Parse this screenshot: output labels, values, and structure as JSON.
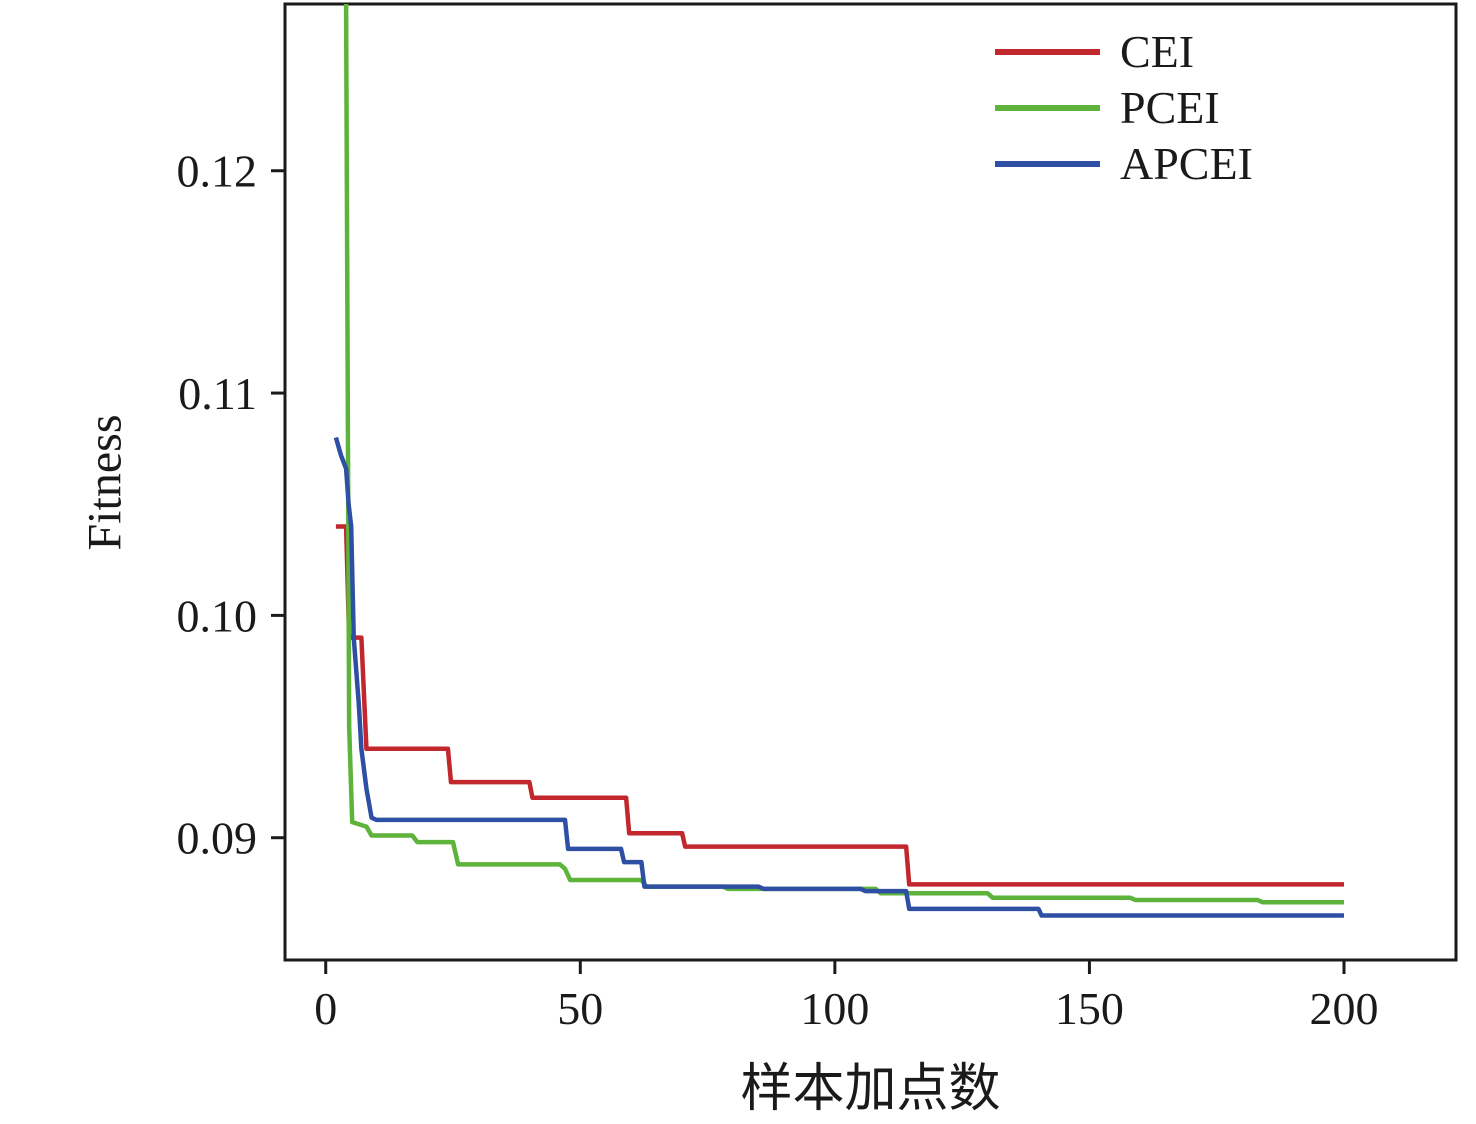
{
  "chart_data": {
    "type": "line",
    "title": "",
    "xlabel": "样本加点数",
    "ylabel": "Fitness",
    "xlim": [
      -8,
      222
    ],
    "ylim": [
      0.0845,
      0.1275
    ],
    "xtick_values": [
      0,
      50,
      100,
      150,
      200
    ],
    "xtick_labels": [
      "0",
      "50",
      "100",
      "150",
      "200"
    ],
    "ytick_values": [
      0.09,
      0.1,
      0.11,
      0.12
    ],
    "ytick_labels": [
      "0.09",
      "0.10",
      "0.11",
      "0.12"
    ],
    "grid": false,
    "legend_position": "top-right",
    "axis_color": "#1a1a1a",
    "series": [
      {
        "name": "CEI",
        "color": "#c1272d",
        "points": [
          [
            2,
            0.104
          ],
          [
            4,
            0.104
          ],
          [
            4.6,
            0.099
          ],
          [
            7,
            0.099
          ],
          [
            7.5,
            0.0965
          ],
          [
            8,
            0.094
          ],
          [
            24,
            0.094
          ],
          [
            24.6,
            0.0925
          ],
          [
            40,
            0.0925
          ],
          [
            40.6,
            0.0918
          ],
          [
            59,
            0.0918
          ],
          [
            59.6,
            0.0902
          ],
          [
            70,
            0.0902
          ],
          [
            70.6,
            0.0896
          ],
          [
            114,
            0.0896
          ],
          [
            114.6,
            0.0879
          ],
          [
            200,
            0.0879
          ]
        ]
      },
      {
        "name": "PCEI",
        "color": "#5eb33a",
        "points": [
          [
            4,
            0.1275
          ],
          [
            4.6,
            0.095
          ],
          [
            5.2,
            0.0907
          ],
          [
            8,
            0.0905
          ],
          [
            9,
            0.0901
          ],
          [
            17,
            0.0901
          ],
          [
            18,
            0.0898
          ],
          [
            25,
            0.0898
          ],
          [
            26,
            0.0888
          ],
          [
            46,
            0.0888
          ],
          [
            47,
            0.0886
          ],
          [
            48,
            0.0881
          ],
          [
            62,
            0.0881
          ],
          [
            63,
            0.0878
          ],
          [
            78,
            0.0878
          ],
          [
            79,
            0.0877
          ],
          [
            108,
            0.0877
          ],
          [
            109,
            0.0875
          ],
          [
            130,
            0.0875
          ],
          [
            131,
            0.0873
          ],
          [
            158,
            0.0873
          ],
          [
            159,
            0.0872
          ],
          [
            183,
            0.0872
          ],
          [
            184,
            0.0871
          ],
          [
            200,
            0.0871
          ]
        ]
      },
      {
        "name": "APCEI",
        "color": "#2e4fa3",
        "points": [
          [
            2,
            0.108
          ],
          [
            3,
            0.1072
          ],
          [
            4,
            0.1066
          ],
          [
            4.5,
            0.105
          ],
          [
            5,
            0.104
          ],
          [
            5.5,
            0.099
          ],
          [
            6.5,
            0.096
          ],
          [
            7,
            0.094
          ],
          [
            8,
            0.0922
          ],
          [
            9,
            0.0909
          ],
          [
            10,
            0.0908
          ],
          [
            47,
            0.0908
          ],
          [
            47.6,
            0.0895
          ],
          [
            58,
            0.0895
          ],
          [
            58.6,
            0.0889
          ],
          [
            62,
            0.0889
          ],
          [
            62.6,
            0.0878
          ],
          [
            85,
            0.0878
          ],
          [
            86,
            0.0877
          ],
          [
            105,
            0.0877
          ],
          [
            106,
            0.0876
          ],
          [
            114,
            0.0876
          ],
          [
            114.6,
            0.0868
          ],
          [
            140,
            0.0868
          ],
          [
            140.6,
            0.0865
          ],
          [
            200,
            0.0865
          ]
        ]
      }
    ]
  }
}
